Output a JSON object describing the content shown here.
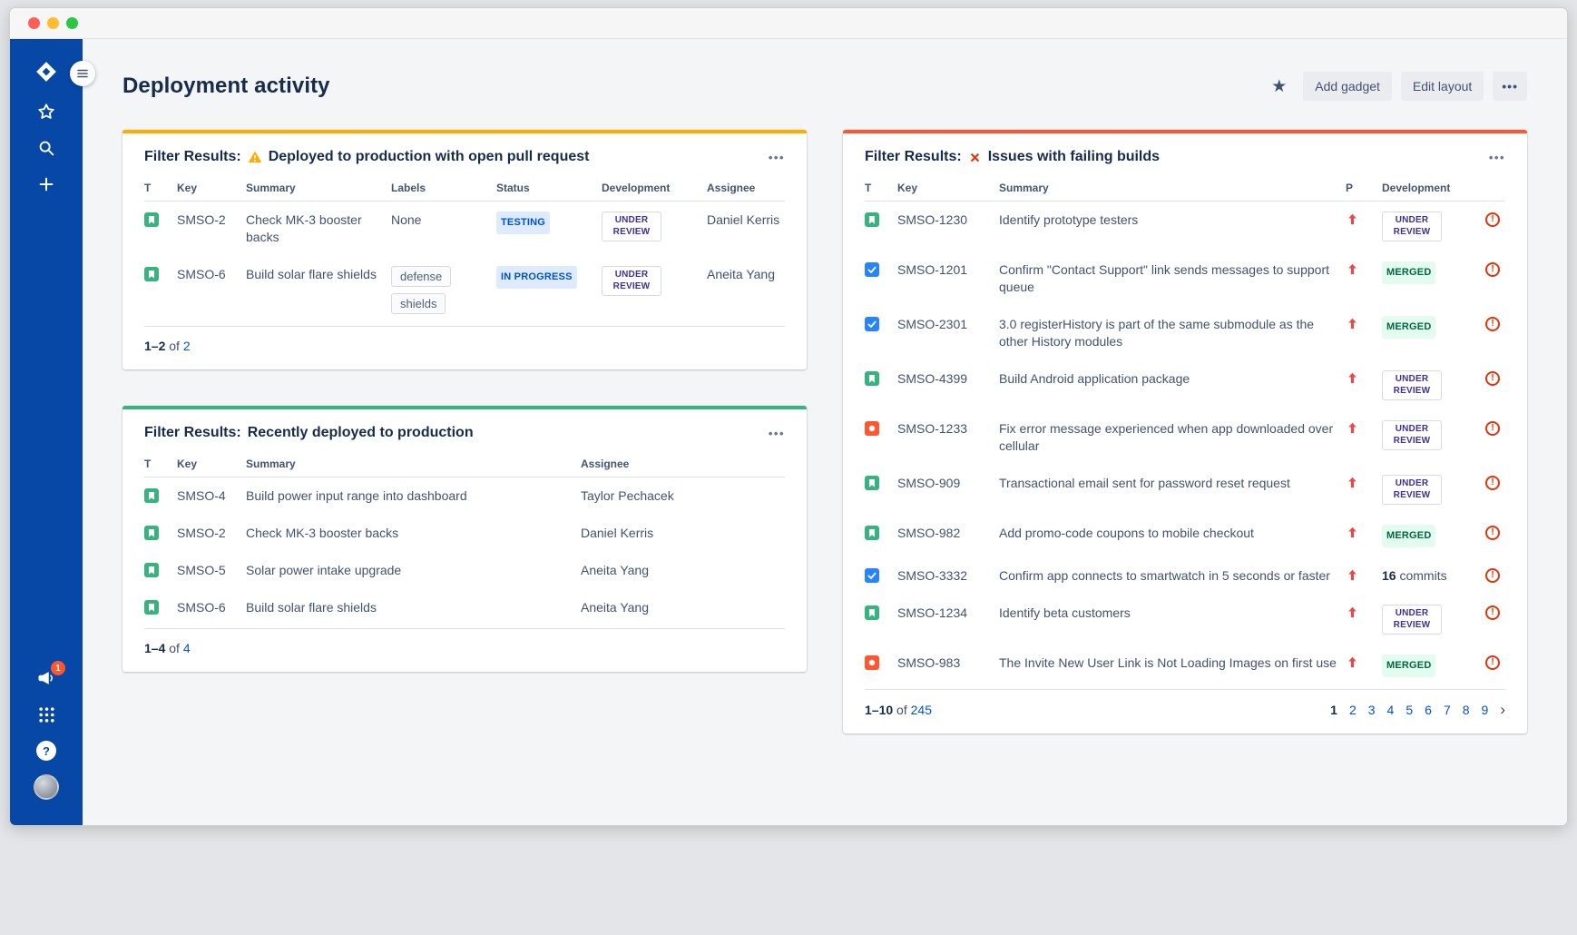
{
  "ui": {
    "more_glyph": "•••",
    "link_blue": "#0052CC",
    "sidebar_blue": "#0747A6"
  },
  "sidebar": {
    "notification_count": "1"
  },
  "header": {
    "title": "Deployment activity",
    "add_gadget_label": "Add gadget",
    "edit_layout_label": "Edit layout"
  },
  "panels": {
    "deployed": {
      "accent": "#FFAB00",
      "title_prefix": "Filter Results:",
      "title": "Deployed to production with open pull request",
      "columns": [
        "T",
        "Key",
        "Summary",
        "Labels",
        "Status",
        "Development",
        "Assignee"
      ],
      "rows": [
        {
          "type": "story",
          "key": "SMSO-2",
          "summary": "Check MK-3 booster backs",
          "labels": [],
          "labels_empty": "None",
          "status": "TESTING",
          "development": "UNDER REVIEW",
          "assignee": "Daniel Kerris"
        },
        {
          "type": "story",
          "key": "SMSO-6",
          "summary": "Build solar flare shields",
          "labels": [
            "defense",
            "shields"
          ],
          "labels_empty": "",
          "status": "IN PROGRESS",
          "development": "UNDER REVIEW",
          "assignee": "Aneita Yang"
        }
      ],
      "footer": {
        "range": "1–2",
        "of_label": "of",
        "total": "2"
      }
    },
    "recent": {
      "accent": "#36B37E",
      "title_prefix": "Filter Results:",
      "title": "Recently deployed to production",
      "columns": [
        "T",
        "Key",
        "Summary",
        "Assignee"
      ],
      "rows": [
        {
          "type": "story",
          "key": "SMSO-4",
          "summary": "Build power input range into dashboard",
          "assignee": "Taylor Pechacek"
        },
        {
          "type": "story",
          "key": "SMSO-2",
          "summary": "Check MK-3 booster backs",
          "assignee": "Daniel Kerris"
        },
        {
          "type": "story",
          "key": "SMSO-5",
          "summary": "Solar power intake upgrade",
          "assignee": "Aneita Yang"
        },
        {
          "type": "story",
          "key": "SMSO-6",
          "summary": "Build solar flare shields",
          "assignee": "Aneita Yang"
        }
      ],
      "footer": {
        "range": "1–4",
        "of_label": "of",
        "total": "4"
      }
    },
    "failing": {
      "accent": "#FF5630",
      "title_prefix": "Filter Results:",
      "title": "Issues with failing builds",
      "columns": [
        "T",
        "Key",
        "Summary",
        "P",
        "Development"
      ],
      "rows": [
        {
          "type": "story",
          "key": "SMSO-1230",
          "summary": "Identify prototype testers",
          "priority": "high",
          "dev_kind": "review",
          "dev_label": "UNDER REVIEW"
        },
        {
          "type": "task",
          "key": "SMSO-1201",
          "summary": "Confirm \"Contact Support\" link sends messages to support queue",
          "priority": "high",
          "dev_kind": "merged",
          "dev_label": "MERGED"
        },
        {
          "type": "task",
          "key": "SMSO-2301",
          "summary": "3.0 registerHistory is part of the same submodule as the other History modules",
          "priority": "high",
          "dev_kind": "merged",
          "dev_label": "MERGED"
        },
        {
          "type": "story",
          "key": "SMSO-4399",
          "summary": "Build Android application package",
          "priority": "high",
          "dev_kind": "review",
          "dev_label": "UNDER REVIEW"
        },
        {
          "type": "bug",
          "key": "SMSO-1233",
          "summary": "Fix error message experienced when app downloaded over cellular",
          "priority": "high",
          "dev_kind": "review",
          "dev_label": "UNDER REVIEW"
        },
        {
          "type": "story",
          "key": "SMSO-909",
          "summary": "Transactional email sent for password reset request",
          "priority": "high",
          "dev_kind": "review",
          "dev_label": "UNDER REVIEW"
        },
        {
          "type": "story",
          "key": "SMSO-982",
          "summary": "Add promo-code coupons to mobile checkout",
          "priority": "high",
          "dev_kind": "merged",
          "dev_label": "MERGED"
        },
        {
          "type": "task",
          "key": "SMSO-3332",
          "summary": "Confirm app connects to smartwatch in 5 seconds or faster",
          "priority": "high",
          "dev_kind": "commits",
          "dev_strong": "16",
          "dev_label": "commits"
        },
        {
          "type": "story",
          "key": "SMSO-1234",
          "summary": "Identify beta customers",
          "priority": "high",
          "dev_kind": "review",
          "dev_label": "UNDER REVIEW"
        },
        {
          "type": "bug",
          "key": "SMSO-983",
          "summary": "The Invite New User Link is Not Loading Images on first use",
          "priority": "high",
          "dev_kind": "merged",
          "dev_label": "MERGED"
        }
      ],
      "footer": {
        "range": "1–10",
        "of_label": "of",
        "total": "245"
      },
      "pagination": {
        "current": "1",
        "pages": [
          "2",
          "3",
          "4",
          "5",
          "6",
          "7",
          "8",
          "9"
        ],
        "next": "›"
      }
    }
  }
}
